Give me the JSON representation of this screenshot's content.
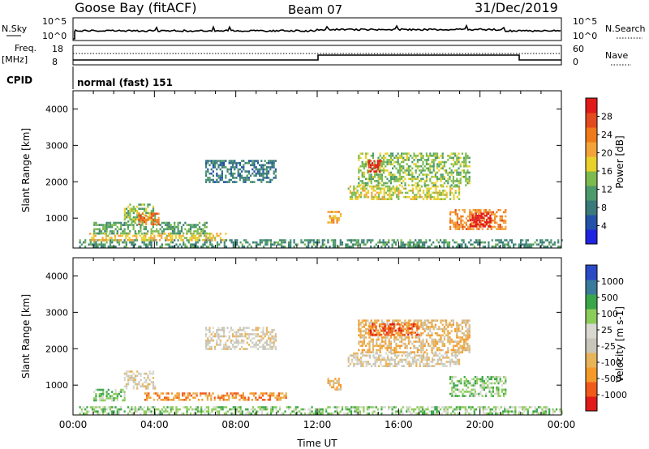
{
  "header": {
    "station": "Goose Bay (fitACF)",
    "beam": "Beam 07",
    "date": "31/Dec/2019"
  },
  "top_panels": {
    "nsky_label": "N.Sky",
    "nsky_ticks": [
      "10^5",
      "10^0"
    ],
    "nsearch_label": "N.Search",
    "nsearch_ticks": [
      "10^5",
      "10^0"
    ],
    "freq_label": "Freq.",
    "freq_unit": "[MHz]",
    "freq_ticks": [
      "18",
      "8"
    ],
    "nave_label": "Nave",
    "nave_ticks": [
      "60",
      "0"
    ],
    "cpid_label": "CPID",
    "cpid_text": "normal (fast) 151"
  },
  "colors": {
    "power": [
      "#1f24e0",
      "#2352a8",
      "#3a7a7a",
      "#4d9a6a",
      "#7dbb4e",
      "#e8d12a",
      "#f4a23a",
      "#f07a1a",
      "#e34a1e",
      "#e11a1a"
    ],
    "velocity": [
      "#e11a1a",
      "#f05a1a",
      "#f49a2a",
      "#e8b45a",
      "#c8c6b8",
      "#d8d8d0",
      "#8ccc5a",
      "#3aa64a",
      "#3a7a9a",
      "#2a4ac6"
    ]
  },
  "chart_data": [
    {
      "type": "heatmap",
      "name": "power",
      "xlabel": "Time UT",
      "ylabel": "Slant Range [km]",
      "xlim": [
        0,
        24
      ],
      "ylim": [
        180,
        4500
      ],
      "yticks": [
        1000,
        2000,
        3000,
        4000
      ],
      "xticks": [
        "00:00",
        "04:00",
        "08:00",
        "12:00",
        "16:00",
        "20:00",
        "00:00"
      ],
      "colorbar": {
        "label": "Power [dB]",
        "ticks": [
          "4",
          "8",
          "12",
          "16",
          "20",
          "24",
          "28"
        ],
        "range": [
          0,
          30
        ]
      },
      "regions": [
        {
          "t": [
            0.3,
            24.0
          ],
          "r": [
            200,
            420
          ],
          "v": 8
        },
        {
          "t": [
            0.8,
            7.5
          ],
          "r": [
            380,
            600
          ],
          "v": 16
        },
        {
          "t": [
            1.0,
            6.6
          ],
          "r": [
            600,
            900
          ],
          "v": 10
        },
        {
          "t": [
            2.5,
            4.0
          ],
          "r": [
            900,
            1400
          ],
          "v": 12
        },
        {
          "t": [
            3.2,
            4.2
          ],
          "r": [
            850,
            1150
          ],
          "v": 22
        },
        {
          "t": [
            6.5,
            10.0
          ],
          "r": [
            2000,
            2600
          ],
          "v": 6
        },
        {
          "t": [
            12.5,
            13.2
          ],
          "r": [
            900,
            1200
          ],
          "v": 18
        },
        {
          "t": [
            13.5,
            19.0
          ],
          "r": [
            1500,
            1900
          ],
          "v": 14
        },
        {
          "t": [
            14.0,
            19.5
          ],
          "r": [
            1900,
            2800
          ],
          "v": 12
        },
        {
          "t": [
            14.5,
            15.2
          ],
          "r": [
            2300,
            2600
          ],
          "v": 26
        },
        {
          "t": [
            18.5,
            21.3
          ],
          "r": [
            700,
            1250
          ],
          "v": 20
        },
        {
          "t": [
            19.5,
            20.5
          ],
          "r": [
            800,
            1150
          ],
          "v": 28
        }
      ]
    },
    {
      "type": "heatmap",
      "name": "velocity",
      "xlabel": "Time UT",
      "ylabel": "Slant Range [km]",
      "xlim": [
        0,
        24
      ],
      "ylim": [
        180,
        4500
      ],
      "yticks": [
        1000,
        2000,
        3000,
        4000
      ],
      "xticks": [
        "00:00",
        "04:00",
        "08:00",
        "12:00",
        "16:00",
        "20:00",
        "00:00"
      ],
      "colorbar": {
        "label": "Velocity [m s-1]",
        "ticks": [
          "1000",
          "500",
          "100",
          "25",
          "-25",
          "-100",
          "-500",
          "-1000"
        ]
      },
      "regions": [
        {
          "t": [
            0.3,
            24.0
          ],
          "r": [
            200,
            420
          ],
          "v": 6
        },
        {
          "t": [
            1.0,
            2.5
          ],
          "r": [
            600,
            900
          ],
          "v": 6
        },
        {
          "t": [
            2.5,
            4.0
          ],
          "r": [
            900,
            1400
          ],
          "v": 4
        },
        {
          "t": [
            3.5,
            10.5
          ],
          "r": [
            600,
            800
          ],
          "v": 2
        },
        {
          "t": [
            6.5,
            10.0
          ],
          "r": [
            2000,
            2600
          ],
          "v": 4
        },
        {
          "t": [
            12.5,
            13.2
          ],
          "r": [
            900,
            1200
          ],
          "v": 3
        },
        {
          "t": [
            13.5,
            19.0
          ],
          "r": [
            1500,
            1900
          ],
          "v": 4
        },
        {
          "t": [
            14.0,
            19.5
          ],
          "r": [
            1900,
            2800
          ],
          "v": 3
        },
        {
          "t": [
            14.5,
            17.0
          ],
          "r": [
            2400,
            2700
          ],
          "v": 1
        },
        {
          "t": [
            18.5,
            21.3
          ],
          "r": [
            700,
            1250
          ],
          "v": 6
        }
      ]
    }
  ]
}
